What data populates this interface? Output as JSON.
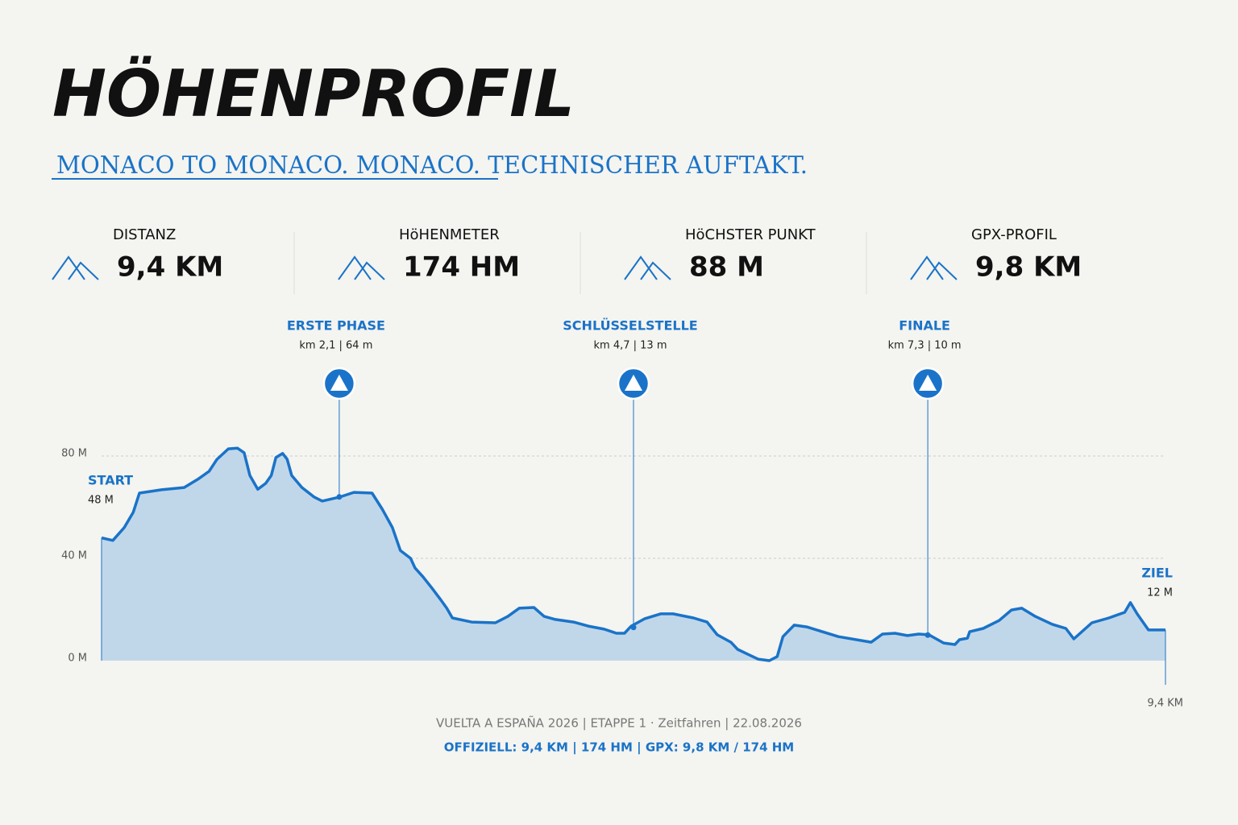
{
  "header": {
    "title": "HÖHENPROFIL",
    "subtitle": "MONACO TO MONACO. MONACO. TECHNISCHER AUFTAKT."
  },
  "stats": [
    {
      "label": "DISTANZ",
      "value": "9,4 KM"
    },
    {
      "label": "HöHENMETER",
      "value": "174 HM"
    },
    {
      "label": "HöCHSTER PUNKT",
      "value": "88 M"
    },
    {
      "label": "GPX-PROFIL",
      "value": "9,8 KM"
    }
  ],
  "chart_data": {
    "type": "area",
    "color": "#1a73c8",
    "x": [
      0,
      0.1,
      0.2,
      0.28,
      0.335,
      0.53,
      0.73,
      0.85,
      0.95,
      1.02,
      1.12,
      1.2,
      1.26,
      1.31,
      1.38,
      1.45,
      1.5,
      1.54,
      1.6,
      1.64,
      1.68,
      1.77,
      1.88,
      1.95,
      2.1,
      2.23,
      2.39,
      2.48,
      2.57,
      2.64,
      2.73,
      2.77,
      2.84,
      2.92,
      3.0,
      3.05,
      3.1,
      3.27,
      3.48,
      3.59,
      3.69,
      3.82,
      3.91,
      4.01,
      4.17,
      4.3,
      4.44,
      4.55,
      4.62,
      4.68,
      4.8,
      4.94,
      5.05,
      5.23,
      5.35,
      5.44,
      5.56,
      5.62,
      5.71,
      5.8,
      5.9,
      5.97,
      6.02,
      6.12,
      6.23,
      6.51,
      6.8,
      6.9,
      7.01,
      7.12,
      7.22,
      7.31,
      7.44,
      7.54,
      7.58,
      7.65,
      7.67,
      7.79,
      7.93,
      8.04,
      8.13,
      8.25,
      8.4,
      8.52,
      8.59,
      8.75,
      8.9,
      9.04,
      9.09,
      9.15,
      9.25,
      9.4
    ],
    "values": [
      48,
      47,
      52,
      58,
      65.5,
      66.8,
      67.7,
      70.9,
      74,
      78.7,
      82.8,
      83.1,
      81.3,
      72.4,
      67,
      69.3,
      72.4,
      79.4,
      81,
      78.7,
      72.4,
      67.7,
      63.9,
      62.4,
      63.9,
      65.8,
      65.5,
      59.2,
      52,
      43.1,
      40,
      36.2,
      32.8,
      28.3,
      23.6,
      20.5,
      16.7,
      15.1,
      14.8,
      17.3,
      20.5,
      20.8,
      17.3,
      16.1,
      15.1,
      13.5,
      12.3,
      10.7,
      10.7,
      13.5,
      16.4,
      18.3,
      18.3,
      16.7,
      15.1,
      10.1,
      7.2,
      4.4,
      2.5,
      0.6,
      0,
      1.6,
      9.4,
      13.9,
      13.2,
      9.4,
      7.2,
      10.4,
      10.7,
      9.8,
      10.4,
      10.1,
      6.9,
      6.3,
      8.2,
      8.8,
      11.3,
      12.6,
      15.7,
      19.8,
      20.5,
      17.3,
      14.2,
      12.6,
      8.5,
      14.8,
      16.7,
      18.9,
      22.7,
      18.3,
      12,
      12
    ],
    "xlim": [
      0,
      9.4
    ],
    "xticks": [
      {
        "value": 9.4,
        "label": "9,4 KM"
      }
    ],
    "ylim": [
      0,
      100
    ],
    "yticks": [
      {
        "value": 0,
        "label": "0 M"
      },
      {
        "value": 40,
        "label": "40 M"
      },
      {
        "value": 80,
        "label": "80 M"
      }
    ],
    "grid": true,
    "start": {
      "name": "START",
      "label": "48 M"
    },
    "end": {
      "name": "ZIEL",
      "label": "12 M"
    },
    "markers": [
      {
        "name": "ERSTE PHASE",
        "label": "km 2,1 | 64 m",
        "x": 2.1,
        "y": 64
      },
      {
        "name": "SCHLÜSSELSTELLE",
        "label": "km 4,7 | 13 m",
        "x": 4.7,
        "y": 13
      },
      {
        "name": "FINALE",
        "label": "km 7,3 | 10 m",
        "x": 7.3,
        "y": 10
      }
    ]
  },
  "footer": {
    "line1": "VUELTA A ESPAÑA 2026 | ETAPPE 1 · Zeitfahren | 22.08.2026",
    "line2": "OFFIZIELL: 9,4 KM | 174 HM | GPX: 9,8 KM / 174 HM"
  }
}
